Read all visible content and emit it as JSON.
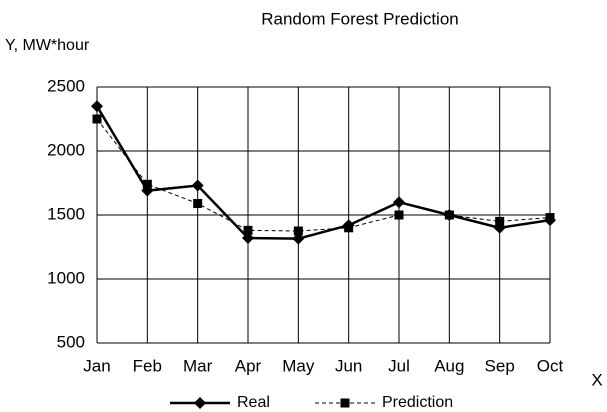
{
  "chart_data": {
    "type": "line",
    "title": "Random Forest Prediction",
    "y_label": "Y, MW*hour",
    "x_label": "X",
    "categories": [
      "Jan",
      "Feb",
      "Mar",
      "Apr",
      "May",
      "Jun",
      "Jul",
      "Aug",
      "Sep",
      "Oct"
    ],
    "series": [
      {
        "name": "Real",
        "color": "#000000",
        "marker": "diamond",
        "dashed": false,
        "values": [
          2350,
          1690,
          1730,
          1320,
          1315,
          1420,
          1600,
          1500,
          1400,
          1460
        ]
      },
      {
        "name": "Prediction",
        "color": "#000000",
        "marker": "square",
        "dashed": true,
        "values": [
          2250,
          1740,
          1590,
          1380,
          1375,
          1400,
          1500,
          1500,
          1450,
          1480
        ]
      }
    ],
    "ylim": [
      500,
      2500
    ],
    "yticks": [
      500,
      1000,
      1500,
      2000,
      2500
    ],
    "grid": true,
    "legend": "bottom"
  }
}
